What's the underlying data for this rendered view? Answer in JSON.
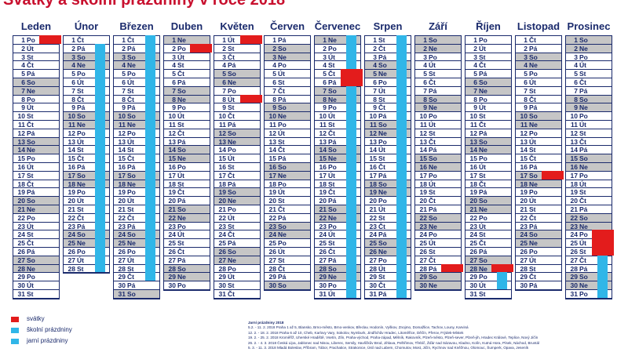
{
  "title": "Svátky a školní prázdniny v roce 2018",
  "colors": {
    "navy": "#1a2a6c",
    "weekend": "#c6c6c6",
    "holiday": "#e31c1c",
    "vacation": "#30b6e8"
  },
  "months": [
    {
      "name": "Leden",
      "days": [
        "Po",
        "Út",
        "St",
        "Čt",
        "Pá",
        "So",
        "Ne",
        "Po",
        "Út",
        "St",
        "Čt",
        "Pá",
        "So",
        "Ne",
        "Po",
        "Út",
        "St",
        "Čt",
        "Pá",
        "So",
        "Ne",
        "Po",
        "Út",
        "St",
        "Čt",
        "Pá",
        "So",
        "Ne",
        "Po",
        "Út",
        "St"
      ],
      "holidays": [
        1
      ],
      "vacation": []
    },
    {
      "name": "Únor",
      "days": [
        "Čt",
        "Pá",
        "So",
        "Ne",
        "Po",
        "Út",
        "St",
        "Čt",
        "Pá",
        "So",
        "Ne",
        "Po",
        "Út",
        "St",
        "Čt",
        "Pá",
        "So",
        "Ne",
        "Po",
        "Út",
        "St",
        "Čt",
        "Pá",
        "So",
        "Ne",
        "Po",
        "Út",
        "St"
      ],
      "holidays": [],
      "vacation": [
        2,
        3,
        4,
        5,
        6,
        7,
        8,
        9,
        10,
        11,
        12,
        13,
        14,
        15,
        16,
        17,
        18,
        19,
        20,
        21,
        22,
        23,
        24,
        25,
        26,
        27,
        28
      ]
    },
    {
      "name": "Březen",
      "days": [
        "Čt",
        "Pá",
        "So",
        "Ne",
        "Po",
        "Út",
        "St",
        "Čt",
        "Pá",
        "So",
        "Ne",
        "Po",
        "Út",
        "St",
        "Čt",
        "Pá",
        "So",
        "Ne",
        "Po",
        "Út",
        "St",
        "Čt",
        "Pá",
        "So",
        "Ne",
        "Po",
        "Út",
        "St",
        "Čt",
        "Pá",
        "So"
      ],
      "holidays": [],
      "vacation": [
        1,
        2,
        3,
        4,
        5,
        6,
        7,
        8,
        9,
        10,
        11,
        12,
        13,
        14,
        15,
        16,
        17,
        18,
        19,
        20,
        21,
        22,
        23,
        24,
        25,
        26,
        27,
        28,
        29
      ]
    },
    {
      "name": "Duben",
      "days": [
        "Ne",
        "Po",
        "Út",
        "St",
        "Čt",
        "Pá",
        "So",
        "Ne",
        "Po",
        "Út",
        "St",
        "Čt",
        "Pá",
        "So",
        "Ne",
        "Po",
        "Út",
        "St",
        "Čt",
        "Pá",
        "So",
        "Ne",
        "Po",
        "Út",
        "St",
        "Čt",
        "Pá",
        "So",
        "Ne",
        "Po"
      ],
      "holidays": [
        2
      ],
      "vacation": []
    },
    {
      "name": "Květen",
      "days": [
        "Út",
        "St",
        "Čt",
        "Pá",
        "So",
        "Ne",
        "Po",
        "Út",
        "St",
        "Čt",
        "Pá",
        "So",
        "Ne",
        "Po",
        "Út",
        "St",
        "Čt",
        "Pá",
        "So",
        "Ne",
        "Po",
        "Út",
        "St",
        "Čt",
        "Pá",
        "So",
        "Ne",
        "Po",
        "Út",
        "St",
        "Čt"
      ],
      "holidays": [
        1,
        8
      ],
      "vacation": []
    },
    {
      "name": "Červen",
      "days": [
        "Pá",
        "So",
        "Ne",
        "Po",
        "Út",
        "St",
        "Čt",
        "Pá",
        "So",
        "Ne",
        "Po",
        "Út",
        "St",
        "Čt",
        "Pá",
        "So",
        "Ne",
        "Po",
        "Út",
        "St",
        "Čt",
        "Pá",
        "So",
        "Ne",
        "Po",
        "Út",
        "St",
        "Čt",
        "Pá",
        "So"
      ],
      "holidays": [],
      "vacation": []
    },
    {
      "name": "Červenec",
      "days": [
        "Ne",
        "Po",
        "Út",
        "St",
        "Čt",
        "Pá",
        "So",
        "Ne",
        "Po",
        "Út",
        "St",
        "Čt",
        "Pá",
        "So",
        "Ne",
        "Po",
        "Út",
        "St",
        "Čt",
        "Pá",
        "So",
        "Ne",
        "Po",
        "Út",
        "St",
        "Čt",
        "Pá",
        "So",
        "Ne",
        "Po",
        "Út"
      ],
      "holidays": [
        5,
        6
      ],
      "vacation": [
        1,
        2,
        3,
        4,
        5,
        6,
        7,
        8,
        9,
        10,
        11,
        12,
        13,
        14,
        15,
        16,
        17,
        18,
        19,
        20,
        21,
        22,
        23,
        24,
        25,
        26,
        27,
        28,
        29,
        30,
        31
      ]
    },
    {
      "name": "Srpen",
      "days": [
        "St",
        "Čt",
        "Pá",
        "So",
        "Ne",
        "Po",
        "Út",
        "St",
        "Čt",
        "Pá",
        "So",
        "Ne",
        "Po",
        "Út",
        "St",
        "Čt",
        "Pá",
        "So",
        "Ne",
        "Po",
        "Út",
        "St",
        "Čt",
        "Pá",
        "So",
        "Ne",
        "Po",
        "Út",
        "St",
        "Čt",
        "Pá"
      ],
      "holidays": [],
      "vacation": [
        1,
        2,
        3,
        4,
        5,
        6,
        7,
        8,
        9,
        10,
        11,
        12,
        13,
        14,
        15,
        16,
        17,
        18,
        19,
        20,
        21,
        22,
        23,
        24,
        25,
        26,
        27,
        28,
        29,
        30,
        31
      ]
    },
    {
      "name": "Září",
      "days": [
        "So",
        "Ne",
        "Po",
        "Út",
        "St",
        "Čt",
        "Pá",
        "So",
        "Ne",
        "Po",
        "Út",
        "St",
        "Čt",
        "Pá",
        "So",
        "Ne",
        "Po",
        "Út",
        "St",
        "Čt",
        "Pá",
        "So",
        "Ne",
        "Po",
        "Út",
        "St",
        "Čt",
        "Pá",
        "So",
        "Ne"
      ],
      "holidays": [
        28
      ],
      "vacation": []
    },
    {
      "name": "Říjen",
      "days": [
        "Po",
        "Út",
        "St",
        "Čt",
        "Pá",
        "So",
        "Ne",
        "Po",
        "Út",
        "St",
        "Čt",
        "Pá",
        "So",
        "Ne",
        "Po",
        "Út",
        "St",
        "Čt",
        "Pá",
        "So",
        "Ne",
        "Po",
        "Út",
        "St",
        "Čt",
        "Pá",
        "So",
        "Ne",
        "Po",
        "Út",
        "St"
      ],
      "holidays": [
        28
      ],
      "vacation": [
        29,
        30
      ]
    },
    {
      "name": "Listopad",
      "days": [
        "Čt",
        "Pá",
        "So",
        "Ne",
        "Po",
        "Út",
        "St",
        "Čt",
        "Pá",
        "So",
        "Ne",
        "Po",
        "Út",
        "St",
        "Čt",
        "Pá",
        "So",
        "Ne",
        "Po",
        "Út",
        "St",
        "Čt",
        "Pá",
        "So",
        "Ne",
        "Po",
        "Út",
        "St",
        "Čt",
        "Pá"
      ],
      "holidays": [
        17
      ],
      "vacation": []
    },
    {
      "name": "Prosinec",
      "days": [
        "So",
        "Ne",
        "Po",
        "Út",
        "St",
        "Čt",
        "Pá",
        "So",
        "Ne",
        "Po",
        "Út",
        "St",
        "Čt",
        "Pá",
        "So",
        "Ne",
        "Po",
        "Út",
        "St",
        "Čt",
        "Pá",
        "So",
        "Ne",
        "Po",
        "Út",
        "St",
        "Čt",
        "Pá",
        "So",
        "Ne",
        "Po"
      ],
      "holidays": [
        24,
        25,
        26
      ],
      "vacation": [
        27,
        28,
        29,
        30,
        31
      ]
    }
  ],
  "legend": [
    {
      "label": "svátky",
      "color": "#e31c1c"
    },
    {
      "label": "školní prázdniny",
      "color": "#30b6e8"
    },
    {
      "label": "jarní prázdniny",
      "color": "#30b6e8"
    }
  ],
  "notes": {
    "title": "Jarní prázdniny 2018",
    "lines": [
      "5.2. - 11. 2. 2018 Praha 1 až 5, Blansko, Brno-město, Brno-venkov, Břeclav, Hodonín, Vyškov, Znojmo, Domažlice, Tachov, Louny, Karviná",
      "12. 2. - 18. 2. 2018 Praha 6 až 10, Cheb, Karlovy Vary, Sokolov, Nymburk, Jindřichův Hradec, Litoměřice, Děčín, Přerov, Frýdek-Místek",
      "19. 2. - 25. 2. 2018 Kroměříž, Uherské Hradiště, Vsetín, Zlín, Praha-východ, Praha-západ, Mělník, Rakovník, Plzeň-město, Plzeň-sever, Plzeň-jih, Hradec Králové, Teplice, Nový Jičín",
      "26. 2. - 4. 3. 2018 Česká Lípa, Jablonec nad Nisou, Liberec, Semily, Havlíčkův Brod, Jihlava, Pelhřimov, Třebíč, Žďár nad Sázavou, Kladno, Kolín, Kutná Hora, Písek, Náchod, Bruntál",
      "5. 3. - 11. 3. 2018 Mladá Boleslav, Příbram, Tábor, Prachatice, Strakonice, Ústí nad Labem, Chomutov, Most, Jičín, Rychnov nad Kněžnou, Olomouc, Šumperk, Opava, Jeseník"
    ]
  }
}
